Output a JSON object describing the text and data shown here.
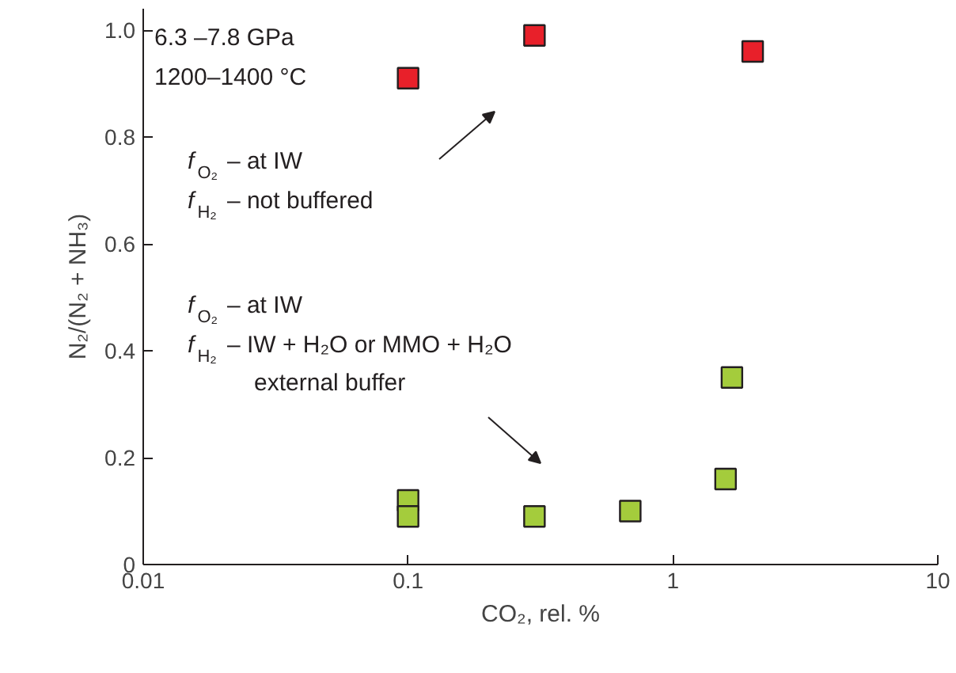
{
  "chart_data": {
    "type": "scatter",
    "xlabel": "CO₂, rel. %",
    "ylabel": "N₂/(N₂ + NH₃)",
    "log": "x",
    "xlim": [
      0.01,
      10
    ],
    "ylim": [
      0,
      1.04
    ],
    "xticks": [
      0.01,
      0.1,
      1,
      10
    ],
    "yticks": [
      0,
      {
        "value": 0.2,
        "label": "0.2"
      },
      {
        "value": 0.4,
        "label": "0.4"
      },
      {
        "value": 0.6,
        "label": "0.6"
      },
      {
        "value": 0.8,
        "label": "0.8"
      },
      {
        "value": 1.0,
        "label": "1.0"
      }
    ],
    "grid": false,
    "marker": "square",
    "series": [
      {
        "color": "#e8202a",
        "x": [
          0.1,
          0.3,
          2.0
        ],
        "values": [
          0.91,
          0.99,
          0.96
        ]
      },
      {
        "color": "#a4cc3c",
        "x": [
          0.1,
          0.1,
          0.3,
          0.69,
          1.58,
          1.67
        ],
        "values": [
          0.12,
          0.09,
          0.09,
          0.1,
          0.16,
          0.35
        ]
      }
    ],
    "annotations": [
      "6.3 –7.8 GPa",
      "1200–1400 °C",
      "f$_{O₂}$ – at IW",
      "f$_{H₂}$ – not buffered",
      "f$_{O₂}$ – at IW",
      "f$_{H₂}$ – IW + H₂O or MMO + H₂O",
      "external buffer"
    ]
  }
}
